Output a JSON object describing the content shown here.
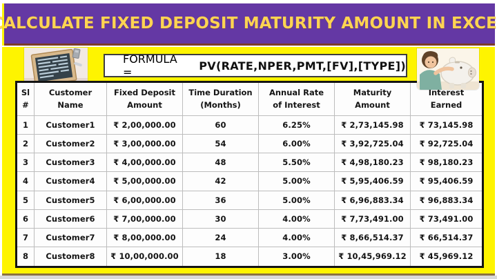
{
  "title": "CALCULATE FIXED DEPOSIT MATURITY AMOUNT IN EXCEL",
  "formula": {
    "label": "FORMULA",
    "equals": "=",
    "expression": "PV(RATE,NPER,PMT,[FV],[TYPE])"
  },
  "images": {
    "left": "chalkboard-slate-photo",
    "right": "girl-with-piggy-bank-photo"
  },
  "colors": {
    "titleBg": "#6438A4",
    "titleText": "#FFD452",
    "frame": "#FEF400",
    "divider": "#7C3A28",
    "tableBorder": "#141414",
    "grid": "#BDBDBD",
    "bottomLine": "#8A7140",
    "edgeGray": "#D9D9D9"
  },
  "chart_data": {
    "type": "table",
    "title": "CALCULATE FIXED DEPOSIT MATURITY AMOUNT IN EXCEL",
    "columns": [
      "Sl #",
      "Customer Name",
      "Fixed Deposit Amount",
      "Time Duration (Months)",
      "Annual Rate of Interest",
      "Maturity Amount",
      "Interest Earned"
    ],
    "columns_two_line": [
      [
        "Sl #",
        ""
      ],
      [
        "Customer",
        "Name"
      ],
      [
        "Fixed Deposit",
        "Amount"
      ],
      [
        "Time Duration",
        "(Months)"
      ],
      [
        "Annual Rate",
        "of Interest"
      ],
      [
        "Maturity",
        "Amount"
      ],
      [
        "Interest",
        "Earned"
      ]
    ],
    "rows": [
      [
        "1",
        "Customer1",
        "₹ 2,00,000.00",
        "60",
        "6.25%",
        "₹ 2,73,145.98",
        "₹ 73,145.98"
      ],
      [
        "2",
        "Customer2",
        "₹ 3,00,000.00",
        "54",
        "6.00%",
        "₹ 3,92,725.04",
        "₹ 92,725.04"
      ],
      [
        "3",
        "Customer3",
        "₹ 4,00,000.00",
        "48",
        "5.50%",
        "₹ 4,98,180.23",
        "₹ 98,180.23"
      ],
      [
        "4",
        "Customer4",
        "₹ 5,00,000.00",
        "42",
        "5.00%",
        "₹ 5,95,406.59",
        "₹ 95,406.59"
      ],
      [
        "5",
        "Customer5",
        "₹ 6,00,000.00",
        "36",
        "5.00%",
        "₹ 6,96,883.34",
        "₹ 96,883.34"
      ],
      [
        "6",
        "Customer6",
        "₹ 7,00,000.00",
        "30",
        "4.00%",
        "₹ 7,73,491.00",
        "₹ 73,491.00"
      ],
      [
        "7",
        "Customer7",
        "₹ 8,00,000.00",
        "24",
        "4.00%",
        "₹ 8,66,514.37",
        "₹ 66,514.37"
      ],
      [
        "8",
        "Customer8",
        "₹ 10,00,000.00",
        "18",
        "3.00%",
        "₹ 10,45,969.12",
        "₹ 45,969.12"
      ]
    ]
  }
}
